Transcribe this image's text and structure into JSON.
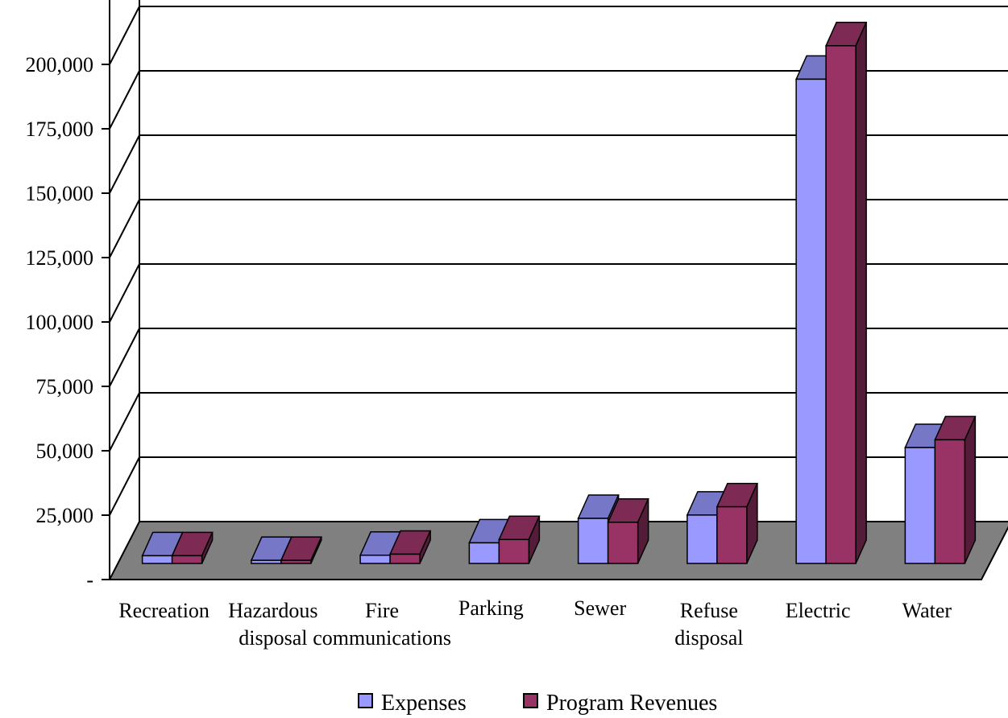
{
  "chart_data": {
    "type": "bar",
    "title": "",
    "xlabel": "",
    "ylabel": "",
    "ylim": [
      0,
      225000
    ],
    "y_ticks": [
      {
        "value": 0,
        "label": "-"
      },
      {
        "value": 25000,
        "label": "25,000"
      },
      {
        "value": 50000,
        "label": "50,000"
      },
      {
        "value": 75000,
        "label": "75,000"
      },
      {
        "value": 100000,
        "label": "100,000"
      },
      {
        "value": 125000,
        "label": "125,000"
      },
      {
        "value": 150000,
        "label": "150,000"
      },
      {
        "value": 175000,
        "label": "175,000"
      },
      {
        "value": 200000,
        "label": "200,000"
      }
    ],
    "categories": [
      [
        "Recreation"
      ],
      [
        "Hazardous",
        "disposal"
      ],
      [
        "Fire",
        "communications"
      ],
      [
        "Parking"
      ],
      [
        "Sewer"
      ],
      [
        "Refuse",
        "disposal"
      ],
      [
        "Electric"
      ],
      [
        "Water"
      ]
    ],
    "series": [
      {
        "name": "Expenses",
        "color": "#9999ff",
        "values": [
          3000,
          1200,
          3200,
          8000,
          17500,
          18800,
          188000,
          45000
        ]
      },
      {
        "name": "Program Revenues",
        "color": "#993366",
        "values": [
          3000,
          1200,
          3600,
          9300,
          16000,
          22000,
          201000,
          48000
        ]
      }
    ],
    "grid": true,
    "three_d": true,
    "legend_position": "bottom",
    "floor_color": "#808080"
  }
}
